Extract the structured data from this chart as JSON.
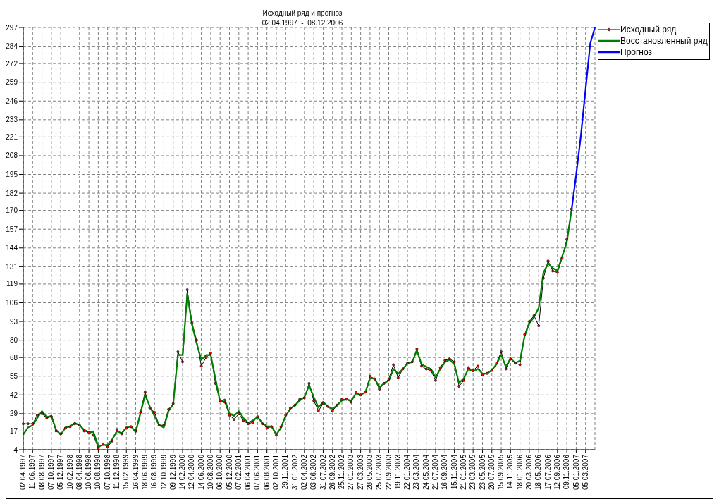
{
  "chart_data": {
    "type": "line",
    "title": "Исходный ряд и прогноз",
    "subtitle": "02.04.1997  -  08.12.2006",
    "categories": [
      "02.04.1997",
      null,
      "11.06.1997",
      null,
      "08.08.1997",
      null,
      "07.10.1997",
      null,
      "05.12.1997",
      null,
      "10.02.1998",
      null,
      "08.04.1998",
      null,
      "10.06.1998",
      null,
      "10.08.1998",
      null,
      "07.10.1998",
      null,
      "11.12.1998",
      null,
      "15.02.1999",
      null,
      "16.04.1999",
      null,
      "18.06.1999",
      null,
      "16.08.1999",
      null,
      "12.10.1999",
      null,
      "09.12.1999",
      null,
      "14.02.2000",
      null,
      "12.04.2000",
      null,
      "14.06.2000",
      null,
      "10.08.2000",
      null,
      "06.10.2000",
      null,
      "05.12.2000",
      null,
      "07.02.2001",
      null,
      "06.04.2001",
      null,
      "07.06.2001",
      null,
      "06.08.2001",
      null,
      "02.10.2001",
      null,
      "29.11.2001",
      null,
      "31.01.2002",
      null,
      "02.04.2002",
      null,
      "03.06.2002",
      null,
      "31.07.2002",
      null,
      "26.09.2002",
      null,
      "25.11.2002",
      null,
      "27.01.2003",
      null,
      "27.03.2003",
      null,
      "28.05.2003",
      null,
      "25.07.2003",
      null,
      "22.09.2003",
      null,
      "19.11.2003",
      null,
      "22.01.2004",
      null,
      "23.03.2004",
      null,
      "24.05.2004",
      null,
      "21.07.2004",
      null,
      "16.09.2004",
      null,
      "15.11.2004",
      null,
      "21.01.2005",
      null,
      "23.03.2005",
      null,
      "23.05.2005",
      null,
      "20.07.2005",
      null,
      "15.09.2005",
      null,
      "14.11.2005",
      null,
      "18.01.2006",
      null,
      "20.03.2006",
      null,
      "18.05.2006",
      null,
      "17.07.2006",
      null,
      "12.09.2006",
      null,
      "09.11.2006",
      null,
      "05.01.2007",
      null,
      "05.03.2007",
      null,
      null
    ],
    "series": [
      {
        "name": "Исходный ряд",
        "color": "#000000",
        "marker": "circle",
        "values": [
          22,
          22,
          22,
          28,
          29,
          26,
          27,
          17,
          15,
          19,
          20,
          22,
          21,
          17,
          16,
          14,
          5,
          8,
          6,
          10,
          18,
          15,
          19,
          20,
          17,
          30,
          44,
          33,
          30,
          21,
          21,
          32,
          36,
          72,
          65,
          115,
          92,
          80,
          62,
          68,
          71,
          50,
          38,
          37,
          28,
          25,
          29,
          24,
          22,
          23,
          27,
          22,
          19,
          20,
          14,
          20,
          28,
          33,
          35,
          39,
          40,
          50,
          38,
          31,
          36,
          34,
          31,
          35,
          39,
          39,
          37,
          44,
          42,
          44,
          55,
          53,
          46,
          50,
          53,
          63,
          54,
          60,
          64,
          65,
          74,
          62,
          60,
          59,
          52,
          61,
          66,
          67,
          65,
          48,
          52,
          61,
          59,
          62,
          56,
          57,
          59,
          64,
          72,
          60,
          67,
          64,
          63,
          84,
          93,
          97,
          90,
          123,
          135,
          128,
          127,
          137,
          150,
          171,
          null,
          null,
          null,
          null,
          null
        ]
      },
      {
        "name": "Восстановленный ряд",
        "color": "#008000",
        "values": [
          14.5,
          19.4,
          21,
          26,
          30.8,
          26.7,
          27.5,
          17.8,
          14.5,
          19.4,
          20.2,
          22.6,
          21,
          17.8,
          16.2,
          16.2,
          6.4,
          7.2,
          7.2,
          11.3,
          17,
          15.4,
          19.4,
          20.2,
          16.2,
          29.1,
          42,
          34,
          27.5,
          21,
          19.4,
          30.8,
          35.6,
          69.7,
          69.7,
          112,
          90.8,
          77.8,
          66.4,
          69.7,
          69.7,
          53.5,
          37.3,
          38.9,
          29.1,
          27.5,
          30.8,
          25.9,
          22.7,
          24.3,
          26.7,
          22.7,
          20.2,
          20.2,
          14.5,
          19.4,
          27.5,
          32.4,
          34.8,
          38.1,
          40.5,
          48.6,
          40.5,
          33.2,
          37.3,
          34,
          32.4,
          34.8,
          38.1,
          38.9,
          38.1,
          43,
          42.1,
          43.7,
          53.5,
          53.5,
          47,
          50.2,
          51.9,
          60,
          56.7,
          60,
          64,
          64.8,
          72.9,
          63.2,
          61.6,
          60,
          54.3,
          60,
          64.8,
          66.5,
          63.2,
          50.2,
          53.5,
          60,
          58.3,
          60.1,
          56.8,
          56.8,
          59.3,
          63.3,
          69.8,
          61.7,
          67.4,
          64.2,
          65.8,
          82.9,
          91.8,
          95.9,
          102.4,
          126.8,
          133.3,
          130,
          128.4,
          138.1,
          147.9,
          170,
          null,
          null,
          null,
          null,
          null
        ]
      },
      {
        "name": "Прогноз",
        "color": "#0000ff",
        "values": [
          null,
          null,
          null,
          null,
          null,
          null,
          null,
          null,
          null,
          null,
          null,
          null,
          null,
          null,
          null,
          null,
          null,
          null,
          null,
          null,
          null,
          null,
          null,
          null,
          null,
          null,
          null,
          null,
          null,
          null,
          null,
          null,
          null,
          null,
          null,
          null,
          null,
          null,
          null,
          null,
          null,
          null,
          null,
          null,
          null,
          null,
          null,
          null,
          null,
          null,
          null,
          null,
          null,
          null,
          null,
          null,
          null,
          null,
          null,
          null,
          null,
          null,
          null,
          null,
          null,
          null,
          null,
          null,
          null,
          null,
          null,
          null,
          null,
          null,
          null,
          null,
          null,
          null,
          null,
          null,
          null,
          null,
          null,
          null,
          null,
          null,
          null,
          null,
          null,
          null,
          null,
          null,
          null,
          null,
          null,
          null,
          null,
          null,
          null,
          null,
          null,
          null,
          null,
          null,
          null,
          null,
          null,
          null,
          null,
          null,
          null,
          null,
          null,
          null,
          null,
          null,
          null,
          170,
          195,
          222,
          254,
          286,
          297
        ]
      }
    ],
    "ylim": [
      4,
      297
    ],
    "yticks": [
      4,
      17,
      29,
      42,
      55,
      68,
      80,
      93,
      106,
      119,
      131,
      144,
      157,
      170,
      182,
      195,
      208,
      221,
      233,
      246,
      259,
      272,
      284,
      297
    ],
    "grid": true,
    "legend": "top right"
  }
}
